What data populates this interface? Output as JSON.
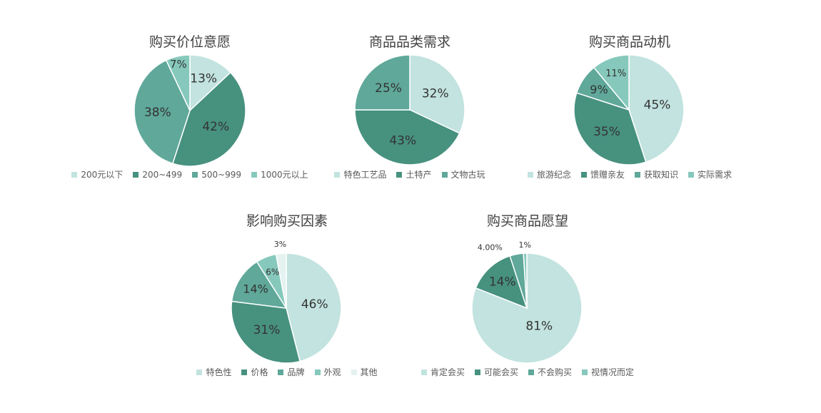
{
  "chart_data": [
    {
      "type": "pie",
      "title": "购买价位意愿",
      "categories": [
        "200元以下",
        "200~499",
        "500~999",
        "1000元以上"
      ],
      "values": [
        13,
        42,
        38,
        7
      ],
      "labels": [
        "13%",
        "42%",
        "38%",
        "7%"
      ],
      "colors": [
        "#c2e3df",
        "#47917f",
        "#5fa89a",
        "#86c9bc"
      ],
      "legend_position": "bottom"
    },
    {
      "type": "pie",
      "title": "商品品类需求",
      "categories": [
        "特色工艺品",
        "土特产",
        "文物古玩"
      ],
      "values": [
        32,
        43,
        25
      ],
      "labels": [
        "32%",
        "43%",
        "25%"
      ],
      "colors": [
        "#c2e3df",
        "#47917f",
        "#5fa89a"
      ],
      "legend_position": "bottom"
    },
    {
      "type": "pie",
      "title": "购买商品动机",
      "categories": [
        "旅游纪念",
        "馈赠亲友",
        "获取知识",
        "实际需求"
      ],
      "values": [
        45,
        35,
        9,
        11
      ],
      "labels": [
        "45%",
        "35%",
        "9%",
        "11%"
      ],
      "colors": [
        "#c2e3df",
        "#47917f",
        "#5fa89a",
        "#86c9bc"
      ],
      "legend_position": "bottom"
    },
    {
      "type": "pie",
      "title": "影响购买因素",
      "categories": [
        "特色性",
        "价格",
        "品牌",
        "外观",
        "其他"
      ],
      "values": [
        46,
        31,
        14,
        6,
        3
      ],
      "labels": [
        "46%",
        "31%",
        "14%",
        "6%",
        "3%"
      ],
      "colors": [
        "#c2e3df",
        "#47917f",
        "#5fa89a",
        "#86c9bc",
        "#e4f2f0"
      ],
      "legend_position": "bottom"
    },
    {
      "type": "pie",
      "title": "购买商品愿望",
      "categories": [
        "肯定会买",
        "可能会买",
        "不会购买",
        "视情况而定"
      ],
      "values": [
        81,
        14,
        4,
        1
      ],
      "labels": [
        "81%",
        "14%",
        "4.00%",
        "1%"
      ],
      "colors": [
        "#c2e3df",
        "#47917f",
        "#5fa89a",
        "#86c9bc"
      ],
      "legend_position": "bottom"
    }
  ]
}
